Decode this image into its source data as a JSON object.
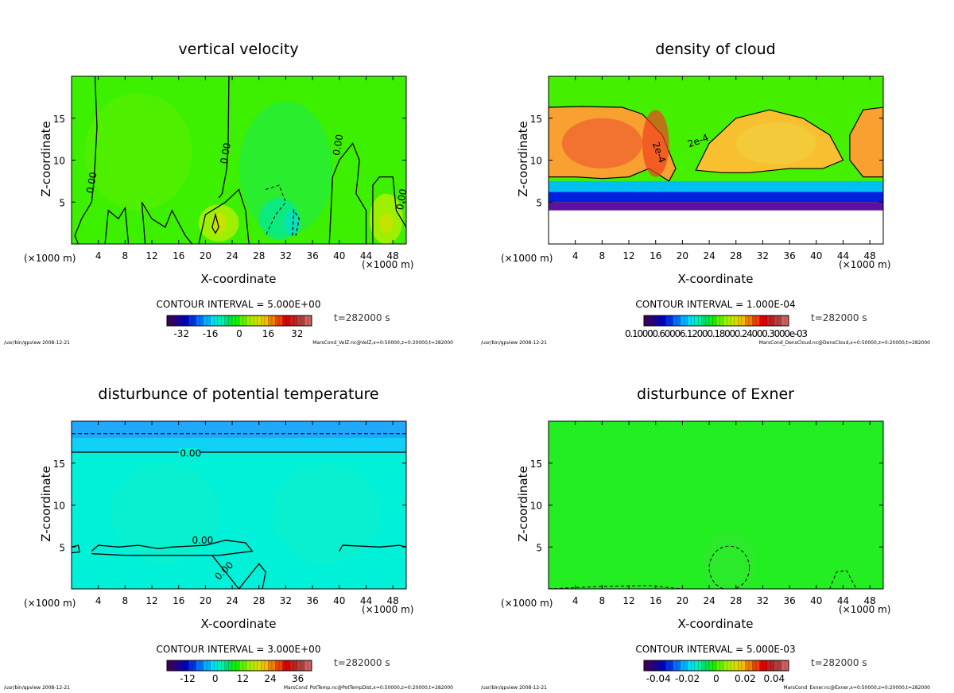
{
  "chart_data": [
    {
      "type": "heatmap",
      "title": "vertical velocity",
      "xlabel": "X-coordinate",
      "ylabel": "Z-coordinate",
      "x_unit_label": "(×1000 m)",
      "xlim": [
        0,
        50
      ],
      "ylim": [
        0,
        20
      ],
      "xticks": [
        "4",
        "8",
        "12",
        "16",
        "20",
        "24",
        "28",
        "32",
        "36",
        "40",
        "44",
        "48"
      ],
      "yticks": [
        "5",
        "10",
        "15"
      ],
      "contour_interval": "CONTOUR INTERVAL = 5.000E+00",
      "contour_labels": [
        "0.00",
        "0.00",
        "0.00",
        "0.00"
      ],
      "colorbar_ticks": [
        "-32",
        "-16",
        "0",
        "16",
        "32"
      ],
      "colorbar_range": [
        -40,
        40
      ],
      "time": "t=282000 s",
      "footer_left": "/usr/bin/gpview  2008-12-21",
      "footer_right": "MarsCond_VelZ.nc@VelZ,x=0:50000,z=0:20000,t=282000",
      "background_color": "#3cf000"
    },
    {
      "type": "heatmap",
      "title": "density of cloud",
      "xlabel": "X-coordinate",
      "ylabel": "Z-coordinate",
      "x_unit_label": "(×1000 m)",
      "xlim": [
        0,
        50
      ],
      "ylim": [
        0,
        20
      ],
      "xticks": [
        "4",
        "8",
        "12",
        "16",
        "20",
        "24",
        "28",
        "32",
        "36",
        "40",
        "44",
        "48"
      ],
      "yticks": [
        "5",
        "10",
        "15"
      ],
      "contour_interval": "CONTOUR INTERVAL = 1.000E-04",
      "contour_labels": [
        "2e-4",
        "2e-4"
      ],
      "colorbar_ticks_text": "0.10000.60006.12000.18000.24000.3000e-03",
      "time": "t=282000 s",
      "footer_left": "/usr/bin/gpview  2008-12-21",
      "footer_right": "MarsCond_DensCloud.nc@DensCloud,x=0:50000,z=0:20000,t=282000",
      "background_color": "#44f000"
    },
    {
      "type": "heatmap",
      "title": "disturbunce of potential temperature",
      "xlabel": "X-coordinate",
      "ylabel": "Z-coordinate",
      "x_unit_label": "(×1000 m)",
      "xlim": [
        0,
        50
      ],
      "ylim": [
        0,
        20
      ],
      "xticks": [
        "4",
        "8",
        "12",
        "16",
        "20",
        "24",
        "28",
        "32",
        "36",
        "40",
        "44",
        "48"
      ],
      "yticks": [
        "5",
        "10",
        "15"
      ],
      "contour_interval": "CONTOUR INTERVAL = 3.000E+00",
      "contour_labels": [
        "0.00",
        "0.00",
        "0.00"
      ],
      "colorbar_ticks": [
        "-12",
        "0",
        "12",
        "24",
        "36"
      ],
      "colorbar_range": [
        -21,
        42
      ],
      "time": "t=282000 s",
      "footer_left": "/usr/bin/gpview  2008-12-21",
      "footer_right": "MarsCond_PotTemp.nc@PotTempDist,x=0:50000,z=0:20000,t=282000",
      "background_color": "#00f0d8"
    },
    {
      "type": "heatmap",
      "title": "disturbunce of Exner",
      "xlabel": "X-coordinate",
      "ylabel": "Z-coordinate",
      "x_unit_label": "(×1000 m)",
      "xlim": [
        0,
        50
      ],
      "ylim": [
        0,
        20
      ],
      "xticks": [
        "4",
        "8",
        "12",
        "16",
        "20",
        "24",
        "28",
        "32",
        "36",
        "40",
        "44",
        "48"
      ],
      "yticks": [
        "5",
        "10",
        "15"
      ],
      "contour_interval": "CONTOUR INTERVAL = 5.000E-03",
      "colorbar_ticks": [
        "-0.04",
        "-0.02",
        "0",
        "0.02",
        "0.04"
      ],
      "colorbar_range": [
        -0.05,
        0.05
      ],
      "time": "t=282000 s",
      "footer_left": "/usr/bin/gpview  2008-12-21",
      "footer_right": "MarsCond_Exner.nc@Exner,x=0:50000,z=0:20000,t=282000",
      "background_color": "#22ee22"
    }
  ]
}
